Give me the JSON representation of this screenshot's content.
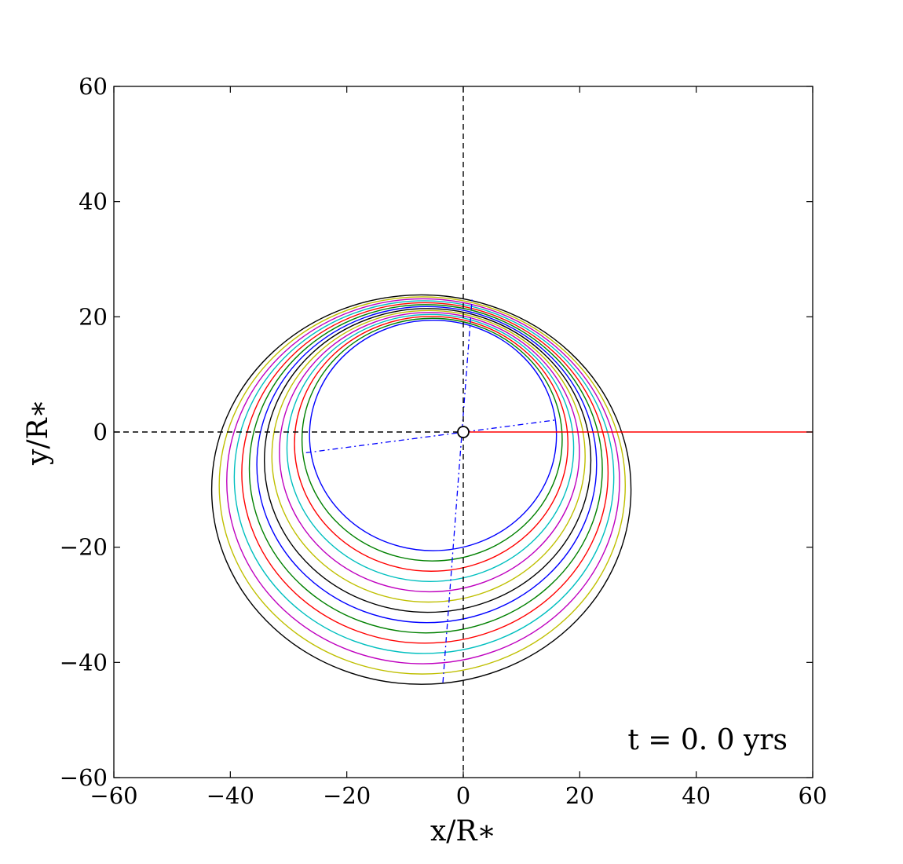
{
  "chart_data": {
    "type": "line",
    "xlabel": "x/R∗",
    "ylabel": "y/R∗",
    "xlim": [
      -60,
      60
    ],
    "ylim": [
      -60,
      60
    ],
    "xticks": [
      -60,
      -40,
      -20,
      0,
      20,
      40,
      60
    ],
    "yticks": [
      -60,
      -40,
      -20,
      0,
      20,
      40,
      60
    ],
    "xtick_labels": [
      "−60",
      "−40",
      "−20",
      "0",
      "20",
      "40",
      "60"
    ],
    "ytick_labels": [
      "−60",
      "−40",
      "−20",
      "0",
      "20",
      "40",
      "60"
    ],
    "grid": false,
    "annotation": "t = 0. 0 yrs",
    "reference_lines": [
      {
        "orientation": "horizontal",
        "value": 0,
        "style": "dashed",
        "color": "#000000"
      },
      {
        "orientation": "vertical",
        "value": 0,
        "style": "dashed",
        "color": "#000000"
      }
    ],
    "central_marker": {
      "x": 0,
      "y": 0,
      "radius": 1
    }
  }
}
